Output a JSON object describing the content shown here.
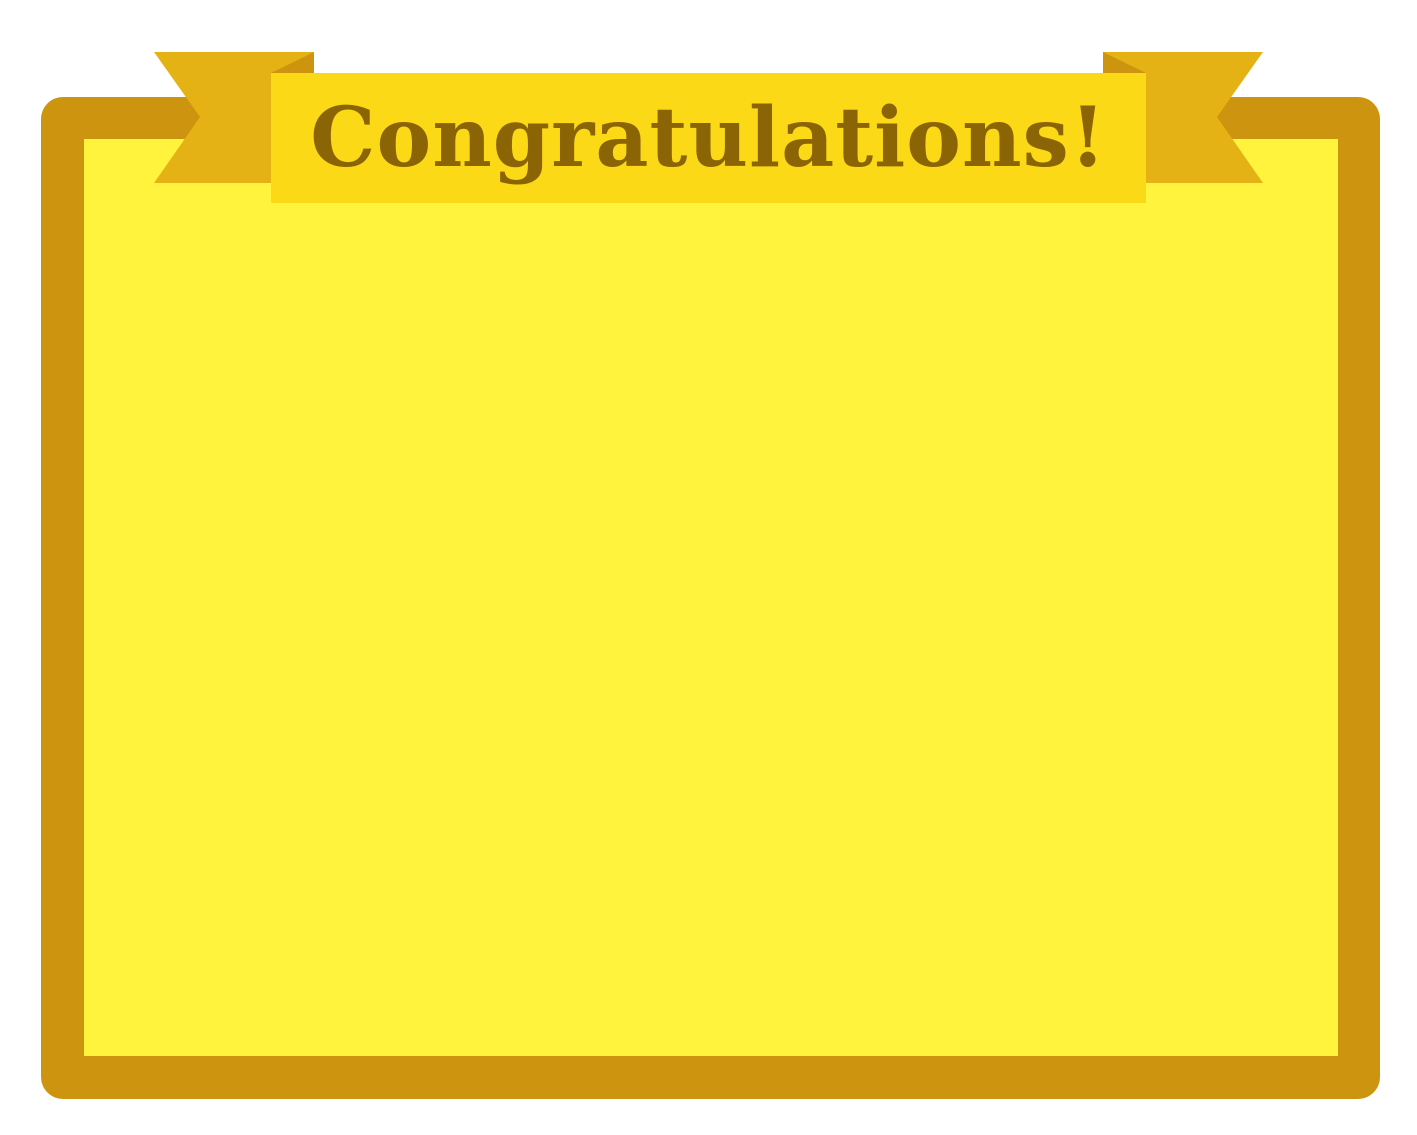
{
  "banner": {
    "title": "Congratulations!"
  },
  "colors": {
    "background": "#ffffff",
    "frame_border": "#cd940f",
    "panel_fill": "#fff33d",
    "ribbon_tail": "#e4b215",
    "ribbon_fold": "#cd940f",
    "banner_fill": "#fbd916",
    "title_text": "#8b6505"
  }
}
